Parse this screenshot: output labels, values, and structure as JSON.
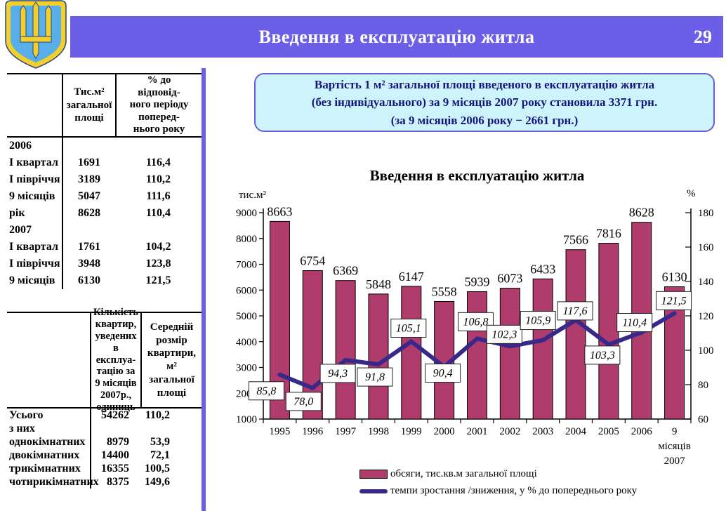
{
  "header": {
    "title": "Введення в експлуатацію житла",
    "page_number": "29"
  },
  "info_box": {
    "line1": "Вартість 1 м² загальної площі введеного в експлуатацію житла",
    "line2": "(без індивідуального) за 9 місяців 2007 року становила 3371 грн.",
    "line3": "(за 9 місяців 2006 року − 2661 грн.)"
  },
  "period_table": {
    "col2_header": "Тис.м²\nзагальної\nплощі",
    "col3_header": "% до\nвідповід-\nного  періоду\nпоперед-\nнього року",
    "rows": [
      [
        "2006",
        "",
        ""
      ],
      [
        "І квартал",
        "1691",
        "116,4"
      ],
      [
        "І півріччя",
        "3189",
        "110,2"
      ],
      [
        "9 місяців",
        "5047",
        "111,6"
      ],
      [
        "рік",
        "8628",
        "110,4"
      ],
      [
        "2007",
        "",
        ""
      ],
      [
        "І квартал",
        "1761",
        "104,2"
      ],
      [
        "І півріччя",
        "3948",
        "123,8"
      ],
      [
        "9 місяців",
        "6130",
        "121,5"
      ]
    ]
  },
  "apartments_table": {
    "col2_header": "Кількість\nквартир,\nуведених в\nексплуа-\nтацію  за\n9 місяців\n2007р.,\nодиниць",
    "col3_header": "Середній\nрозмір\nквартири,\nм²\nзагальної\nплощі",
    "rows": [
      [
        "Усього",
        "54262",
        "110,2"
      ],
      [
        "з них",
        "",
        ""
      ],
      [
        "однокімнатних",
        "8979",
        "53,9"
      ],
      [
        "двокімнатних",
        "14400",
        "72,1"
      ],
      [
        "трикімнатних",
        "16355",
        "100,5"
      ],
      [
        "чотирикімнатних",
        "8375",
        "149,6"
      ]
    ]
  },
  "chart_data": {
    "type": "bar+line",
    "title": "Введення в експлуатацію житла",
    "categories": [
      "1995",
      "1996",
      "1997",
      "1998",
      "1999",
      "2000",
      "2001",
      "2002",
      "2003",
      "2004",
      "2005",
      "2006",
      "9 місяців 2007"
    ],
    "series": [
      {
        "name": "обсяги, тис.кв.м загальної площі",
        "type": "bar",
        "axis": "left",
        "color": "#AF3C6C",
        "values": [
          8663,
          6754,
          6369,
          5848,
          6147,
          5558,
          5939,
          6073,
          6433,
          7566,
          7816,
          8628,
          6130
        ]
      },
      {
        "name": "темпи зростання /зниження, у % до попереднього року",
        "type": "line",
        "axis": "right",
        "color": "#38288A",
        "values": [
          85.8,
          78.0,
          94.3,
          91.8,
          105.1,
          90.4,
          106.8,
          102.3,
          105.9,
          117.6,
          103.3,
          110.4,
          121.5
        ]
      }
    ],
    "left_axis": {
      "label": "тис.м²",
      "min": 1000,
      "max": 9000,
      "step": 1000
    },
    "right_axis": {
      "label": "%",
      "min": 60,
      "max": 180,
      "step": 20
    },
    "legend_position": "bottom",
    "gridlines": false
  },
  "colors": {
    "accent": "#6A5FE6",
    "bar": "#AF3C6C",
    "bar_label": "#B03A6B",
    "line": "#38288A",
    "line_label_text": "#3A35A8",
    "info_bg": "#CDF3FB",
    "info_border": "#6A5FD8",
    "info_text": "#15157E"
  }
}
